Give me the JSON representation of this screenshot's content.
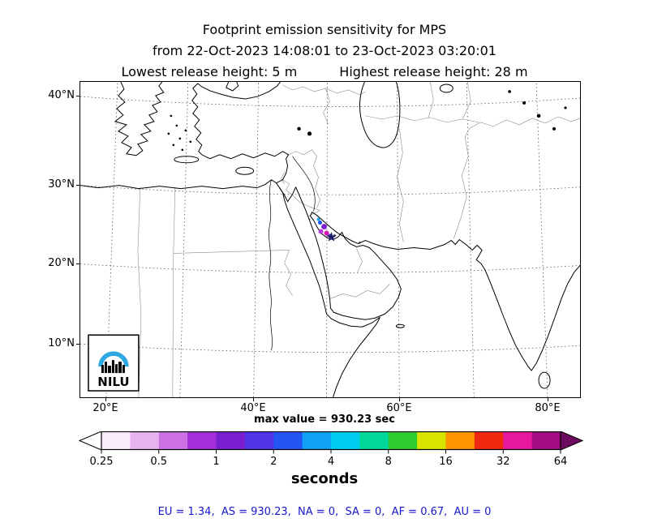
{
  "title": {
    "line1": "Footprint emission sensitivity for MPS",
    "line2": "from 22-Oct-2023 14:08:01 to 23-Oct-2023 03:20:01",
    "release_low": "Lowest release height: 5 m",
    "release_high": "Highest release height: 28 m"
  },
  "map": {
    "lat_labels": [
      "40°N",
      "30°N",
      "20°N",
      "10°N"
    ],
    "lon_labels": [
      "20°E",
      "40°E",
      "60°E",
      "80°E"
    ],
    "logo_text": "NILU",
    "logo_arc_color": "#2ea8e0",
    "marker_color": "#1c1c66"
  },
  "max_value_label": "max value = 930.23 sec",
  "colorbar": {
    "units": "seconds",
    "tick_labels": [
      "0.25",
      "0.5",
      "1",
      "2",
      "4",
      "8",
      "16",
      "32",
      "64"
    ],
    "left_arrow_color": "#ffffff",
    "right_arrow_color": "#6e0a60",
    "segment_colors": [
      "#f8ebfa",
      "#e6b2f0",
      "#cd72e4",
      "#a32fd8",
      "#7a1fd0",
      "#5133e8",
      "#2455f0",
      "#12a0f5",
      "#00ccf0",
      "#00d89a",
      "#2ecc2e",
      "#d8e400",
      "#ff9500",
      "#f02810",
      "#e6189e",
      "#a10c84"
    ]
  },
  "footer": {
    "region_totals": "EU = 1.34,  AS = 930.23,  NA = 0,  SA = 0,  AF = 0.67,  AU = 0"
  }
}
